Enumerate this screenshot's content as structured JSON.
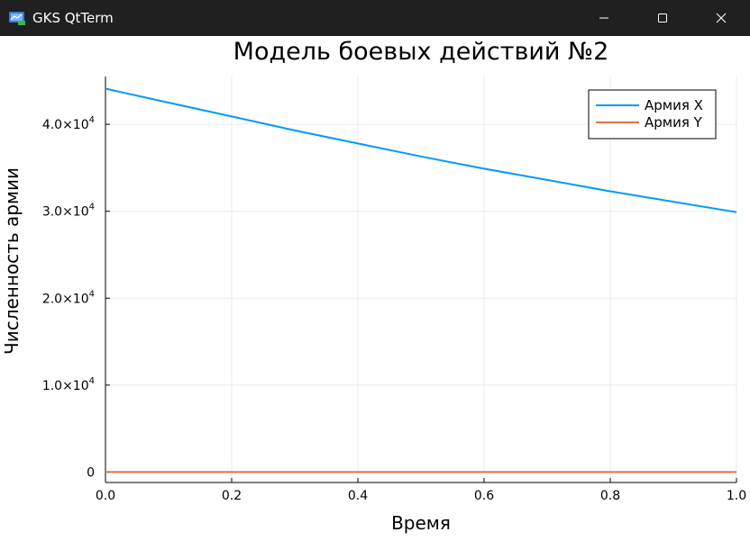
{
  "window": {
    "title": "GKS QtTerm",
    "icon": "gks-app-icon",
    "controls": [
      "minimize-icon",
      "maximize-icon",
      "close-icon"
    ]
  },
  "colors": {
    "titlebar": "#202020",
    "series_x": "#009AFA",
    "series_y": "#E26F46"
  },
  "chart_data": {
    "type": "line",
    "title": "Модель боевых действий №2",
    "xlabel": "Время",
    "ylabel": "Численность армии",
    "xlim": [
      0,
      1
    ],
    "ylim": [
      -1200,
      45500
    ],
    "xticks": [
      0,
      0.2,
      0.4,
      0.6,
      0.8,
      1.0
    ],
    "xtick_labels": [
      "0.0",
      "0.2",
      "0.4",
      "0.6",
      "0.8",
      "1.0"
    ],
    "yticks": [
      0,
      10000,
      20000,
      30000,
      40000
    ],
    "ytick_labels": [
      {
        "mantissa": "0",
        "exp": ""
      },
      {
        "mantissa": "1.0×10",
        "exp": "4"
      },
      {
        "mantissa": "2.0×10",
        "exp": "4"
      },
      {
        "mantissa": "3.0×10",
        "exp": "4"
      },
      {
        "mantissa": "4.0×10",
        "exp": "4"
      }
    ],
    "grid": true,
    "legend_position": "top-right",
    "series": [
      {
        "name": "Армия X",
        "color": "#009AFA",
        "x": [
          0,
          0.1,
          0.2,
          0.3,
          0.4,
          0.5,
          0.6,
          0.7,
          0.8,
          0.9,
          1.0
        ],
        "y": [
          44100,
          42500,
          40900,
          39300,
          37800,
          36300,
          34900,
          33600,
          32300,
          31100,
          29900
        ]
      },
      {
        "name": "Армия Y",
        "color": "#E26F46",
        "x": [
          0,
          0.1,
          0.2,
          0.3,
          0.4,
          0.5,
          0.6,
          0.7,
          0.8,
          0.9,
          1.0
        ],
        "y": [
          0,
          0,
          0,
          0,
          0,
          0,
          0,
          0,
          0,
          0,
          0
        ]
      }
    ]
  }
}
